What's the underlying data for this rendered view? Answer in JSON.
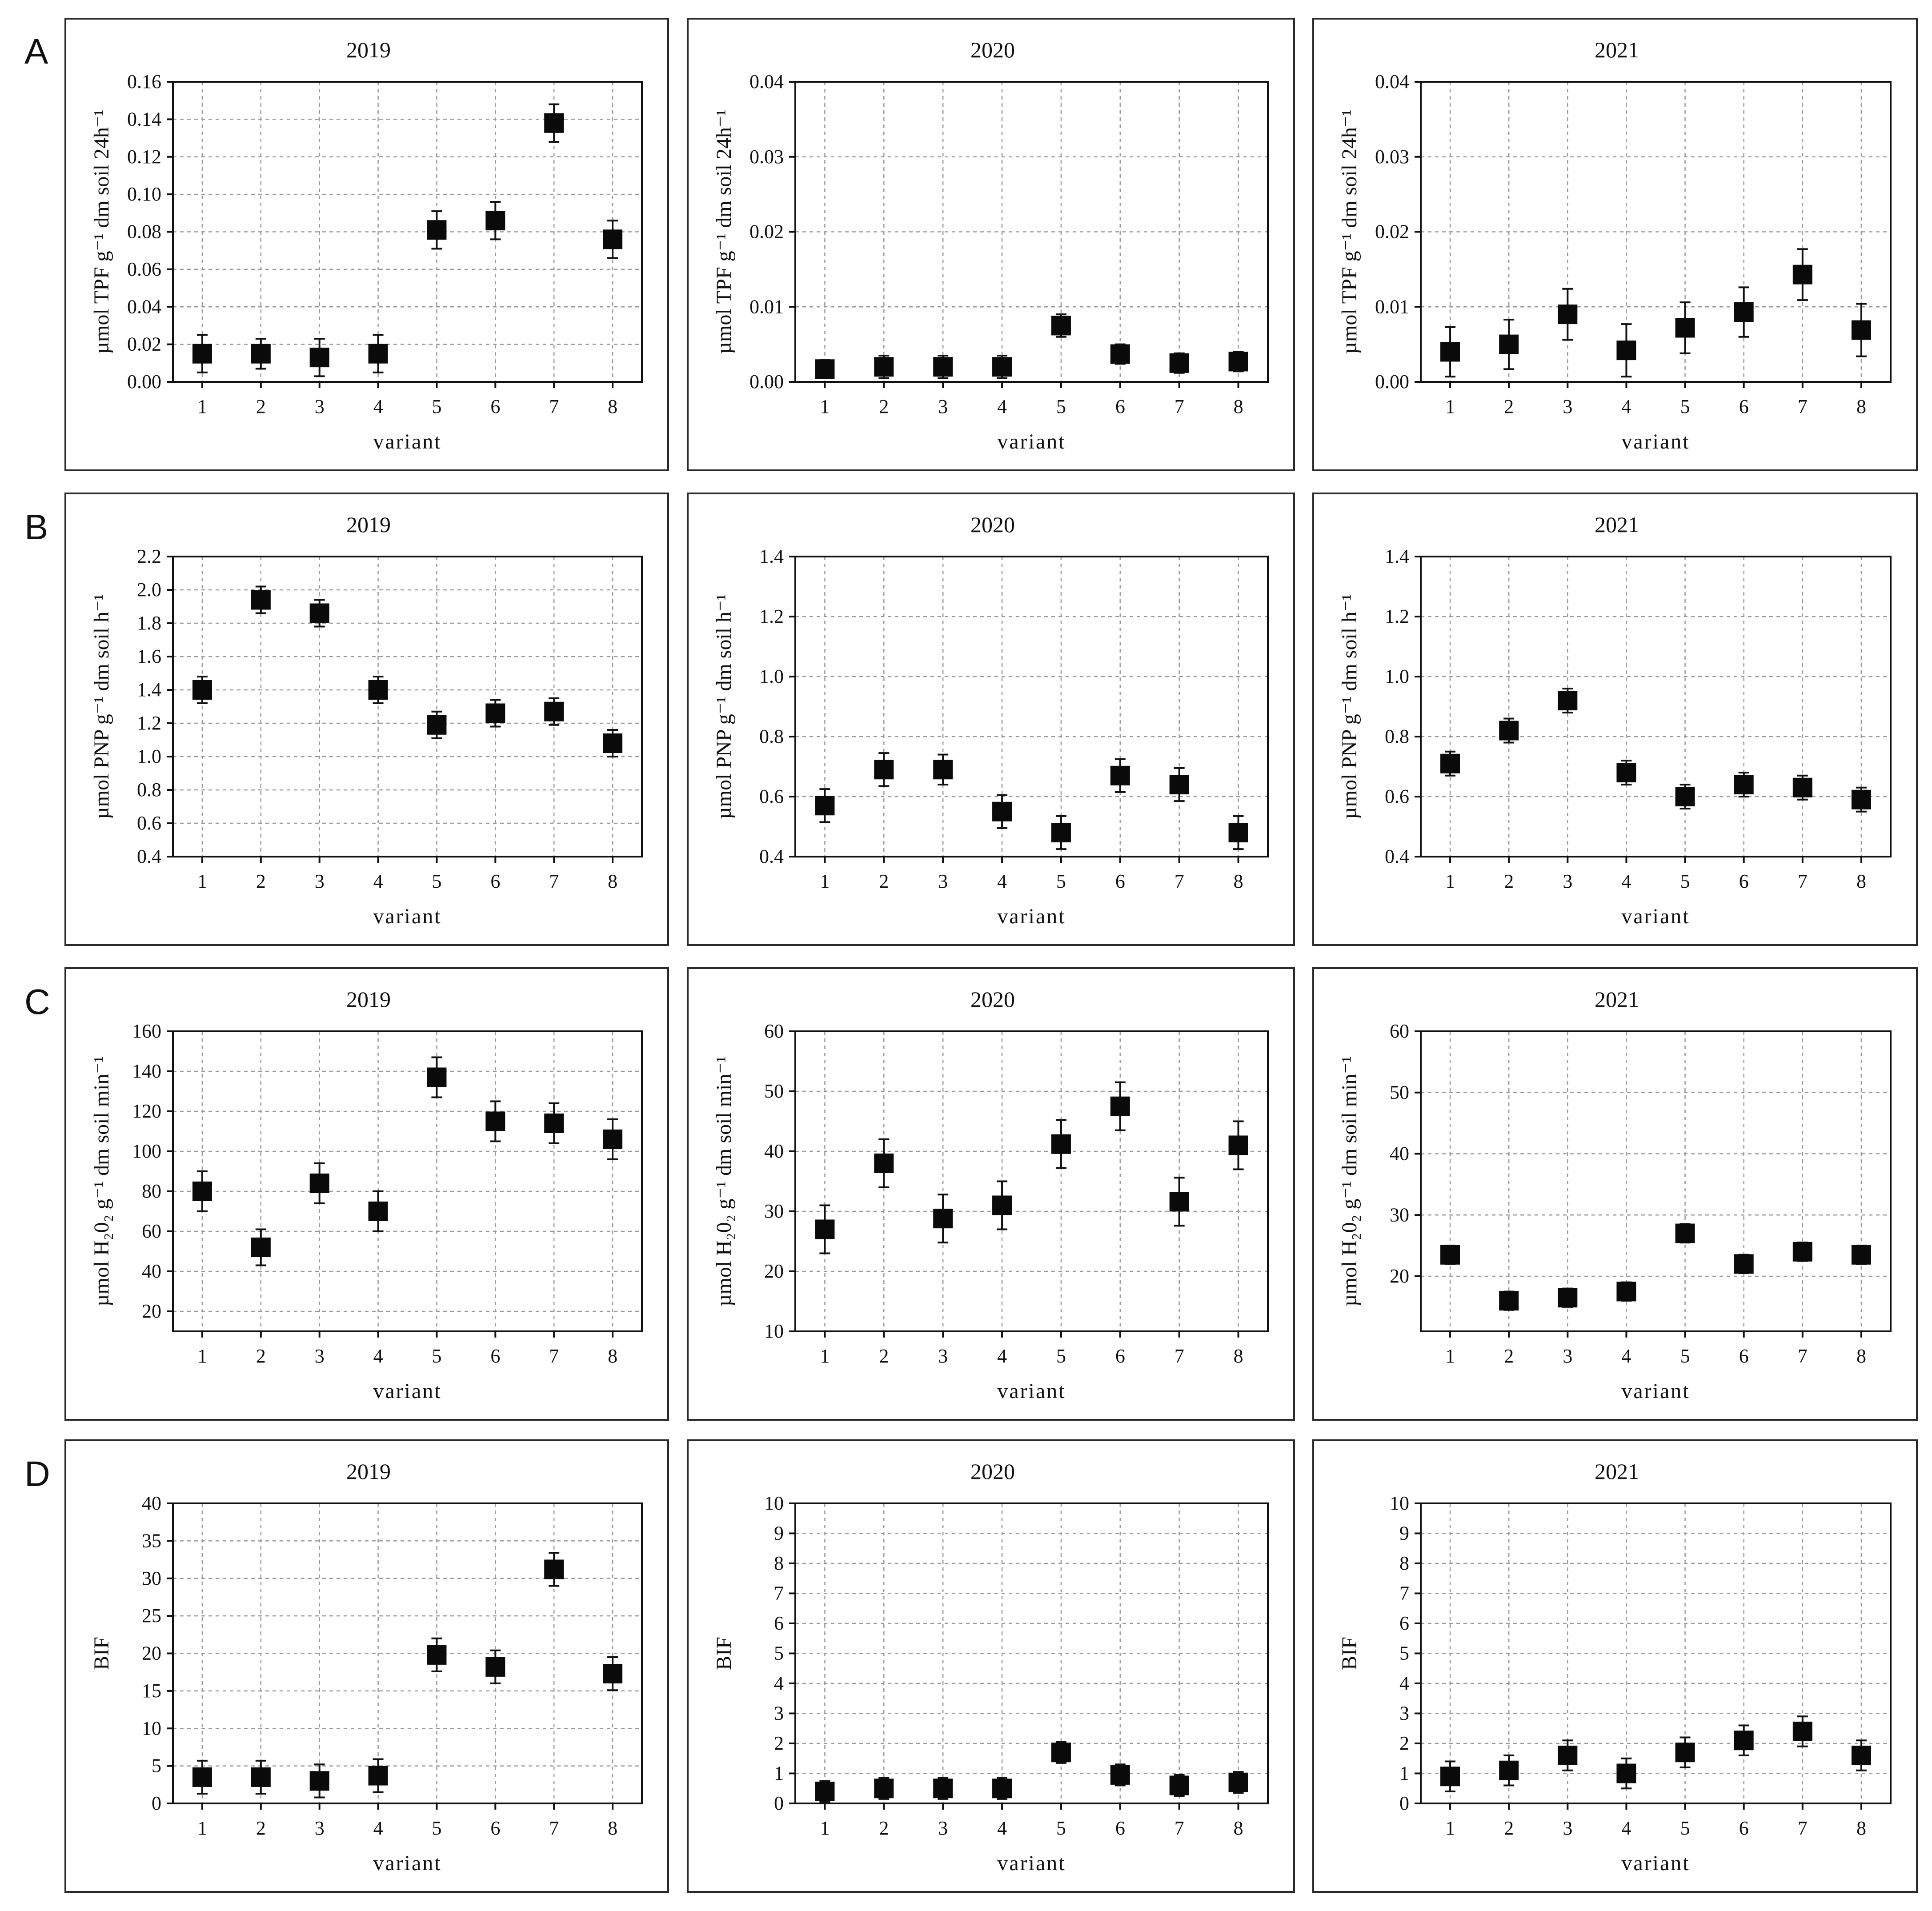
{
  "row_labels": [
    "A",
    "B",
    "C",
    "D"
  ],
  "chart_data": [
    {
      "row": "A",
      "type": "scatter",
      "title": "2019",
      "xlabel": "variant",
      "ylabel": "µmol TPF g⁻¹ dm soil 24h⁻¹",
      "ylim": [
        0,
        0.16
      ],
      "yticks": [
        0,
        0.02,
        0.04,
        0.06,
        0.08,
        0.1,
        0.12,
        0.14,
        0.16
      ],
      "ytick_labels": [
        "0.00",
        "0.02",
        "0.04",
        "0.06",
        "0.08",
        "0.10",
        "0.12",
        "0.14",
        "0.16"
      ],
      "x": [
        1,
        2,
        3,
        4,
        5,
        6,
        7,
        8
      ],
      "values": [
        0.015,
        0.015,
        0.013,
        0.015,
        0.081,
        0.086,
        0.138,
        0.076
      ],
      "err": [
        0.01,
        0.008,
        0.01,
        0.01,
        0.01,
        0.01,
        0.01,
        0.01
      ]
    },
    {
      "row": "A",
      "type": "scatter",
      "title": "2020",
      "xlabel": "variant",
      "ylabel": "µmol TPF g⁻¹ dm soil 24h⁻¹",
      "ylim": [
        0,
        0.04
      ],
      "yticks": [
        0,
        0.01,
        0.02,
        0.03,
        0.04
      ],
      "ytick_labels": [
        "0.00",
        "0.01",
        "0.02",
        "0.03",
        "0.04"
      ],
      "x": [
        1,
        2,
        3,
        4,
        5,
        6,
        7,
        8
      ],
      "values": [
        0.0017,
        0.002,
        0.002,
        0.002,
        0.0075,
        0.0037,
        0.0025,
        0.0027
      ],
      "err": [
        0.0012,
        0.0015,
        0.0015,
        0.0015,
        0.0015,
        0.0013,
        0.0013,
        0.0013
      ]
    },
    {
      "row": "A",
      "type": "scatter",
      "title": "2021",
      "xlabel": "variant",
      "ylabel": "µmol TPF g⁻¹ dm soil 24h⁻¹",
      "ylim": [
        0,
        0.04
      ],
      "yticks": [
        0,
        0.01,
        0.02,
        0.03,
        0.04
      ],
      "ytick_labels": [
        "0.00",
        "0.01",
        "0.02",
        "0.03",
        "0.04"
      ],
      "x": [
        1,
        2,
        3,
        4,
        5,
        6,
        7,
        8
      ],
      "values": [
        0.004,
        0.005,
        0.009,
        0.0042,
        0.0072,
        0.0093,
        0.0143,
        0.0069
      ],
      "err": [
        0.0033,
        0.0033,
        0.0034,
        0.0035,
        0.0034,
        0.0033,
        0.0034,
        0.0035
      ]
    },
    {
      "row": "B",
      "type": "scatter",
      "title": "2019",
      "xlabel": "variant",
      "ylabel": "µmol PNP g⁻¹ dm soil h⁻¹",
      "ylim": [
        0.4,
        2.2
      ],
      "yticks": [
        0.4,
        0.6,
        0.8,
        1.0,
        1.2,
        1.4,
        1.6,
        1.8,
        2.0,
        2.2
      ],
      "ytick_labels": [
        "0.4",
        "0.6",
        "0.8",
        "1.0",
        "1.2",
        "1.4",
        "1.6",
        "1.8",
        "2.0",
        "2.2"
      ],
      "x": [
        1,
        2,
        3,
        4,
        5,
        6,
        7,
        8
      ],
      "values": [
        1.4,
        1.94,
        1.86,
        1.4,
        1.19,
        1.26,
        1.27,
        1.08
      ],
      "err": [
        0.08,
        0.08,
        0.08,
        0.08,
        0.08,
        0.08,
        0.08,
        0.08
      ]
    },
    {
      "row": "B",
      "type": "scatter",
      "title": "2020",
      "xlabel": "variant",
      "ylabel": "µmol PNP g⁻¹ dm soil h⁻¹",
      "ylim": [
        0.4,
        1.4
      ],
      "yticks": [
        0.4,
        0.6,
        0.8,
        1.0,
        1.2,
        1.4
      ],
      "ytick_labels": [
        "0.4",
        "0.6",
        "0.8",
        "1.0",
        "1.2",
        "1.4"
      ],
      "x": [
        1,
        2,
        3,
        4,
        5,
        6,
        7,
        8
      ],
      "values": [
        0.57,
        0.69,
        0.69,
        0.55,
        0.48,
        0.67,
        0.64,
        0.48
      ],
      "err": [
        0.055,
        0.055,
        0.05,
        0.055,
        0.055,
        0.055,
        0.055,
        0.055
      ]
    },
    {
      "row": "B",
      "type": "scatter",
      "title": "2021",
      "xlabel": "variant",
      "ylabel": "µmol PNP g⁻¹ dm soil h⁻¹",
      "ylim": [
        0.4,
        1.4
      ],
      "yticks": [
        0.4,
        0.6,
        0.8,
        1.0,
        1.2,
        1.4
      ],
      "ytick_labels": [
        "0.4",
        "0.6",
        "0.8",
        "1.0",
        "1.2",
        "1.4"
      ],
      "x": [
        1,
        2,
        3,
        4,
        5,
        6,
        7,
        8
      ],
      "values": [
        0.71,
        0.82,
        0.92,
        0.68,
        0.6,
        0.64,
        0.63,
        0.59
      ],
      "err": [
        0.04,
        0.04,
        0.04,
        0.04,
        0.04,
        0.04,
        0.04,
        0.04
      ]
    },
    {
      "row": "C",
      "type": "scatter",
      "title": "2019",
      "xlabel": "variant",
      "ylabel": "µmol H₂0₂ g⁻¹ dm soil min⁻¹",
      "ylim": [
        10,
        160
      ],
      "yticks": [
        20,
        40,
        60,
        80,
        100,
        120,
        140,
        160
      ],
      "ytick_labels": [
        "20",
        "40",
        "60",
        "80",
        "100",
        "120",
        "140",
        "160"
      ],
      "x": [
        1,
        2,
        3,
        4,
        5,
        6,
        7,
        8
      ],
      "values": [
        80,
        52,
        84,
        70,
        137,
        115,
        114,
        106
      ],
      "err": [
        10,
        9,
        10,
        10,
        10,
        10,
        10,
        10
      ]
    },
    {
      "row": "C",
      "type": "scatter",
      "title": "2020",
      "xlabel": "variant",
      "ylabel": "µmol H₂0₂ g⁻¹ dm soil min⁻¹",
      "ylim": [
        10,
        60
      ],
      "yticks": [
        10,
        20,
        30,
        40,
        50,
        60
      ],
      "ytick_labels": [
        "10",
        "20",
        "30",
        "40",
        "50",
        "60"
      ],
      "x": [
        1,
        2,
        3,
        4,
        5,
        6,
        7,
        8
      ],
      "values": [
        27,
        38,
        28.8,
        31,
        41.2,
        47.5,
        31.6,
        41
      ],
      "err": [
        4,
        4,
        4,
        4,
        4,
        4,
        4,
        4
      ]
    },
    {
      "row": "C",
      "type": "scatter",
      "title": "2021",
      "xlabel": "variant",
      "ylabel": "µmol H₂0₂ g⁻¹ dm soil min⁻¹",
      "ylim": [
        11,
        60
      ],
      "yticks": [
        20,
        30,
        40,
        50,
        60
      ],
      "ytick_labels": [
        "20",
        "30",
        "40",
        "50",
        "60"
      ],
      "x": [
        1,
        2,
        3,
        4,
        5,
        6,
        7,
        8
      ],
      "values": [
        23.5,
        16,
        16.5,
        17.5,
        27,
        22,
        24,
        23.5
      ],
      "err": [
        1.5,
        1.5,
        1.5,
        1.5,
        1.5,
        1.5,
        1.5,
        1.5
      ]
    },
    {
      "row": "D",
      "type": "scatter",
      "title": "2019",
      "xlabel": "variant",
      "ylabel": "BIF",
      "ylim": [
        0,
        40
      ],
      "yticks": [
        0,
        5,
        10,
        15,
        20,
        25,
        30,
        35,
        40
      ],
      "ytick_labels": [
        "0",
        "5",
        "10",
        "15",
        "20",
        "25",
        "30",
        "35",
        "40"
      ],
      "x": [
        1,
        2,
        3,
        4,
        5,
        6,
        7,
        8
      ],
      "values": [
        3.5,
        3.5,
        3,
        3.7,
        19.8,
        18.2,
        31.2,
        17.3
      ],
      "err": [
        2.2,
        2.2,
        2.2,
        2.2,
        2.2,
        2.2,
        2.2,
        2.2
      ]
    },
    {
      "row": "D",
      "type": "scatter",
      "title": "2020",
      "xlabel": "variant",
      "ylabel": "BIF",
      "ylim": [
        0,
        10
      ],
      "yticks": [
        0,
        1,
        2,
        3,
        4,
        5,
        6,
        7,
        8,
        9,
        10
      ],
      "ytick_labels": [
        "0",
        "1",
        "2",
        "3",
        "4",
        "5",
        "6",
        "7",
        "8",
        "9",
        "10"
      ],
      "x": [
        1,
        2,
        3,
        4,
        5,
        6,
        7,
        8
      ],
      "values": [
        0.4,
        0.5,
        0.5,
        0.5,
        1.7,
        0.95,
        0.6,
        0.7
      ],
      "err": [
        0.35,
        0.35,
        0.35,
        0.35,
        0.35,
        0.35,
        0.35,
        0.35
      ]
    },
    {
      "row": "D",
      "type": "scatter",
      "title": "2021",
      "xlabel": "variant",
      "ylabel": "BIF",
      "ylim": [
        0,
        10
      ],
      "yticks": [
        0,
        1,
        2,
        3,
        4,
        5,
        6,
        7,
        8,
        9,
        10
      ],
      "ytick_labels": [
        "0",
        "1",
        "2",
        "3",
        "4",
        "5",
        "6",
        "7",
        "8",
        "9",
        "10"
      ],
      "x": [
        1,
        2,
        3,
        4,
        5,
        6,
        7,
        8
      ],
      "values": [
        0.9,
        1.1,
        1.6,
        1.0,
        1.7,
        2.1,
        2.4,
        1.6
      ],
      "err": [
        0.5,
        0.5,
        0.5,
        0.5,
        0.5,
        0.5,
        0.5,
        0.5
      ]
    }
  ]
}
